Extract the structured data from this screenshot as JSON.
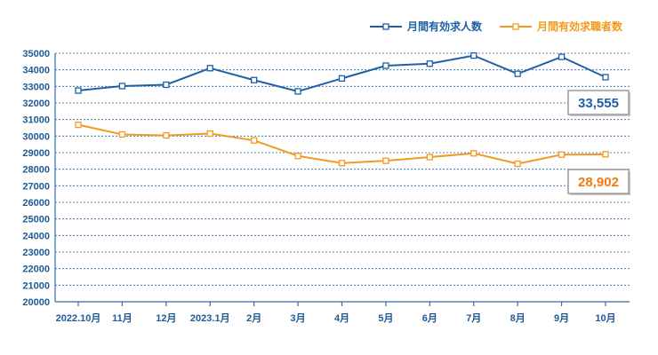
{
  "chart_data": {
    "type": "line",
    "categories": [
      "2022.10月",
      "11月",
      "12月",
      "2023.1月",
      "2月",
      "3月",
      "4月",
      "5月",
      "6月",
      "7月",
      "8月",
      "9月",
      "10月"
    ],
    "ylim": [
      20000,
      35000
    ],
    "yticks": [
      "35000",
      "34000",
      "33000",
      "32000",
      "31000",
      "30000",
      "29000",
      "28000",
      "27000",
      "26000",
      "25000",
      "24000",
      "23000",
      "22000",
      "21000",
      "20000"
    ],
    "grid": true,
    "legend_position": "top-right",
    "series": [
      {
        "name": "月間有効求人数",
        "color": "#1f5fa6",
        "values": [
          32750,
          33020,
          33100,
          34100,
          33380,
          32700,
          33480,
          34250,
          34370,
          34860,
          33760,
          34780,
          33555
        ],
        "callout": "33,555"
      },
      {
        "name": "月間有効求職者数",
        "color": "#f39a1e",
        "values": [
          30680,
          30100,
          30040,
          30150,
          29740,
          28800,
          28370,
          28510,
          28730,
          28960,
          28330,
          28880,
          28902
        ],
        "callout": "28,902"
      }
    ]
  }
}
